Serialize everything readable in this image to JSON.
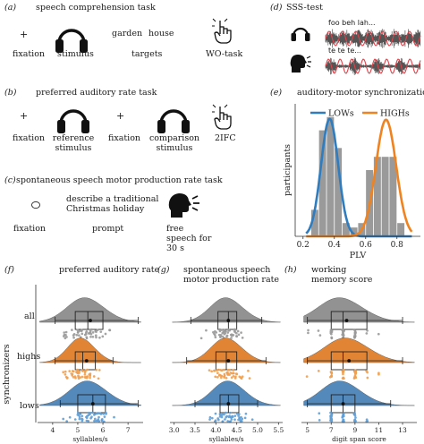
{
  "colors": {
    "low": "#2f7cbf",
    "high": "#f0831f",
    "gray": "#8a8a8a",
    "hist": "#9a9a9a",
    "violin_all": "#8d8d8d",
    "violin_high": "#e07f2b",
    "violin_low": "#4b84b8",
    "dot_all": "#9a9a9a",
    "dot_high": "#f0a050",
    "dot_low": "#5f9fd6"
  },
  "panel_a": {
    "label": "(a)",
    "title": "speech comprehension task",
    "plus": "+",
    "word1": "garden",
    "word2": "house",
    "captions": [
      "fixation",
      "stimulus",
      "targets",
      "WO-task"
    ],
    "icons": [
      "headphones-icon",
      "pointer-hand-icon"
    ]
  },
  "panel_b": {
    "label": "(b)",
    "title": "preferred auditory rate task",
    "plus": "+",
    "captions": [
      "fixation",
      "reference stimulus",
      "fixation",
      "comparison stimulus",
      "2IFC"
    ],
    "icons": [
      "headphones-icon",
      "headphones-icon",
      "pointer-hand-icon"
    ]
  },
  "panel_c": {
    "label": "(c)",
    "title": "spontaneous speech motor production rate task",
    "prompt_text": "describe a traditional Christmas holiday",
    "captions": [
      "fixation",
      "prompt",
      "free speech for 30 s"
    ],
    "icons": [
      "circle-fixation-icon",
      "speaking-head-icon"
    ]
  },
  "panel_d": {
    "label": "(d)",
    "title": "SSS-test",
    "text_listen": "foo beh lah...",
    "text_speak": "te te te...",
    "icons": [
      "headphones-icon",
      "speaking-head-icon"
    ]
  },
  "panel_e": {
    "label": "(e)",
    "title": "auditory-motor synchronization",
    "chart_data": {
      "type": "histogram",
      "title": "auditory-motor synchronization",
      "xlabel": "PLV",
      "ylabel": "participants",
      "xlim": [
        0.15,
        0.95
      ],
      "xticks": [
        0.2,
        0.4,
        0.6,
        0.8
      ],
      "ylim": [
        0,
        15
      ],
      "bins": [
        {
          "x0": 0.25,
          "x1": 0.3,
          "count": 3
        },
        {
          "x0": 0.3,
          "x1": 0.35,
          "count": 12
        },
        {
          "x0": 0.35,
          "x1": 0.4,
          "count": 13.5
        },
        {
          "x0": 0.4,
          "x1": 0.45,
          "count": 10
        },
        {
          "x0": 0.45,
          "x1": 0.5,
          "count": 1.5
        },
        {
          "x0": 0.5,
          "x1": 0.55,
          "count": 1
        },
        {
          "x0": 0.55,
          "x1": 0.6,
          "count": 1.5
        },
        {
          "x0": 0.6,
          "x1": 0.65,
          "count": 7.5
        },
        {
          "x0": 0.65,
          "x1": 0.7,
          "count": 9
        },
        {
          "x0": 0.7,
          "x1": 0.75,
          "count": 9
        },
        {
          "x0": 0.75,
          "x1": 0.8,
          "count": 9
        },
        {
          "x0": 0.8,
          "x1": 0.85,
          "count": 1.5
        }
      ],
      "series": [
        {
          "name": "LOWs",
          "mu": 0.37,
          "sigma": 0.055,
          "peak": 13.3
        },
        {
          "name": "HIGHs",
          "mu": 0.73,
          "sigma": 0.065,
          "peak": 13.2
        }
      ],
      "legend": "top"
    }
  },
  "rain": {
    "ylabel": "synchronizers",
    "groups": [
      "all",
      "highs",
      "lows"
    ],
    "panels": [
      {
        "label": "(f)",
        "title": "preferred auditory rate",
        "xlabel": "syllables/s",
        "xlim": [
          3.4,
          7.6
        ],
        "xticks": [
          4,
          5,
          6,
          7
        ],
        "stats": {
          "all": {
            "q1": 4.9,
            "median": 5.4,
            "q3": 6.0,
            "lo": 4.1,
            "hi": 7.4,
            "mean": 5.5,
            "mode": 5.4,
            "sd": 0.75
          },
          "highs": {
            "q1": 4.9,
            "median": 5.2,
            "q3": 5.7,
            "lo": 4.1,
            "hi": 6.4,
            "mean": 5.35,
            "mode": 5.2,
            "sd": 0.55
          },
          "lows": {
            "q1": 5.0,
            "median": 5.6,
            "q3": 6.1,
            "lo": 4.3,
            "hi": 7.4,
            "mean": 5.6,
            "mode": 5.5,
            "sd": 0.75
          }
        }
      },
      {
        "label": "(g)",
        "title": "spontaneous speech motor production rate",
        "xlabel": "syllables/s",
        "xlim": [
          2.9,
          5.6
        ],
        "xticks": [
          3.0,
          3.5,
          4.0,
          4.5,
          5.0,
          5.5
        ],
        "stats": {
          "all": {
            "q1": 4.05,
            "median": 4.3,
            "q3": 4.5,
            "lo": 3.4,
            "hi": 5.1,
            "mean": 4.3,
            "mode": 4.3,
            "sd": 0.4
          },
          "highs": {
            "q1": 4.0,
            "median": 4.25,
            "q3": 4.5,
            "lo": 3.3,
            "hi": 5.2,
            "mean": 4.3,
            "mode": 4.3,
            "sd": 0.38
          },
          "lows": {
            "q1": 4.1,
            "median": 4.3,
            "q3": 4.55,
            "lo": 3.5,
            "hi": 5.0,
            "mean": 4.3,
            "mode": 4.35,
            "sd": 0.4
          }
        }
      },
      {
        "label": "(h)",
        "title": "working memory score",
        "xlabel": "digit span score",
        "xlim": [
          4.5,
          14.2
        ],
        "xticks": [
          5,
          7,
          9,
          11,
          13
        ],
        "stats": {
          "all": {
            "q1": 7.0,
            "median": 8.0,
            "q3": 10.0,
            "lo": 5.0,
            "hi": 13.0,
            "mean": 8.3,
            "mode": 8.0,
            "sd": 1.9
          },
          "highs": {
            "q1": 7.0,
            "median": 8.0,
            "q3": 10.0,
            "lo": 5.0,
            "hi": 13.0,
            "mean": 8.5,
            "mode": 8.5,
            "sd": 1.9
          },
          "lows": {
            "q1": 7.0,
            "median": 8.0,
            "q3": 9.0,
            "lo": 5.0,
            "hi": 12.0,
            "mean": 8.0,
            "mode": 8.0,
            "sd": 1.7
          }
        }
      }
    ]
  }
}
